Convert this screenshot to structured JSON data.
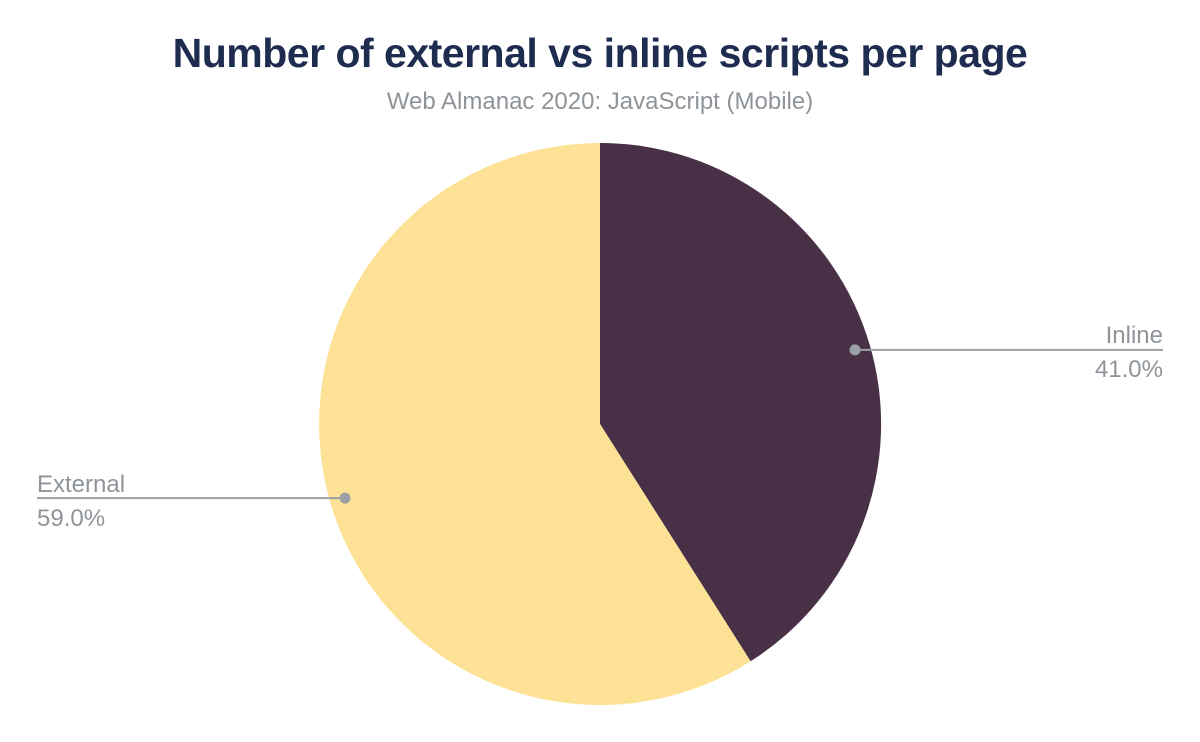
{
  "header": {
    "title": "Number of external vs inline scripts per page",
    "subtitle": "Web Almanac 2020: JavaScript (Mobile)"
  },
  "chart_data": {
    "type": "pie",
    "title": "Number of external vs inline scripts per page",
    "subtitle": "Web Almanac 2020: JavaScript (Mobile)",
    "start_angle_deg": 0,
    "direction": "clockwise",
    "legend_position": "outside-callouts",
    "slices": [
      {
        "label": "Inline",
        "value": 41.0,
        "display": "41.0%",
        "color": "#483147",
        "label_side": "right"
      },
      {
        "label": "External",
        "value": 59.0,
        "display": "59.0%",
        "color": "#fde296",
        "label_side": "left"
      }
    ]
  },
  "colors": {
    "title_text": "#1d2c4f",
    "muted_text": "#8e9499",
    "callout_line": "#9aa0a5",
    "background": "#ffffff"
  }
}
